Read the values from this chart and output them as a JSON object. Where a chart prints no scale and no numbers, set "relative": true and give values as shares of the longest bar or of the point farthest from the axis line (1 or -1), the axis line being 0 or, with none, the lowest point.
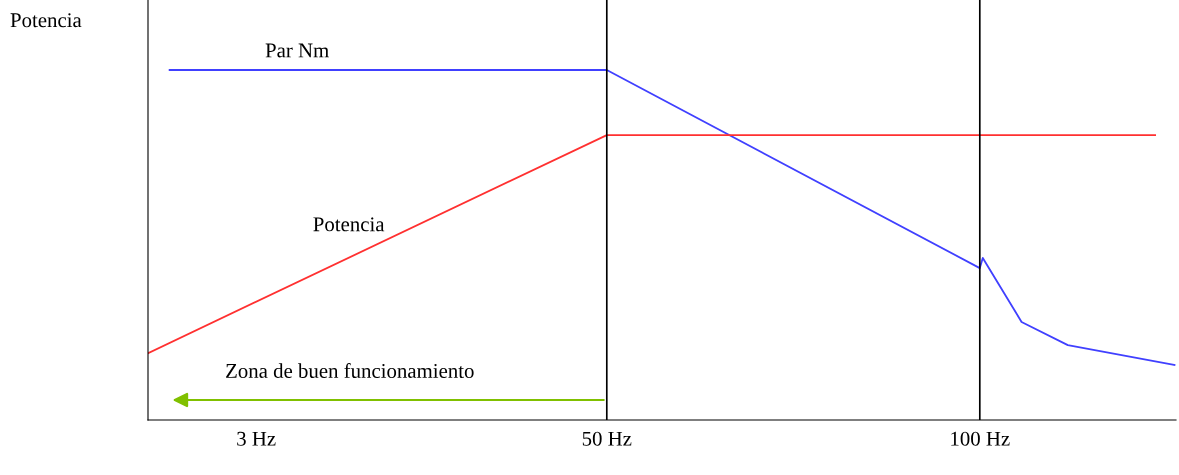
{
  "chart_data": {
    "type": "line",
    "relative": true,
    "ylabel": "Potencia",
    "xlim": [
      -11.5,
      126.3
    ],
    "xticks": [
      {
        "value": 3,
        "label": "3 Hz"
      },
      {
        "value": 50,
        "label": "50 Hz"
      },
      {
        "value": 100,
        "label": "100 Hz"
      }
    ],
    "series": [
      {
        "name": "Par Nm",
        "color": "#4040ff",
        "x": [
          -8.6,
          50,
          100,
          100.4,
          105.6,
          111.8,
          126.1
        ],
        "values": [
          1,
          1,
          0.434,
          0.463,
          0.28,
          0.214,
          0.157
        ]
      },
      {
        "name": "Potencia",
        "color": "#ff3030",
        "x": [
          -11.5,
          50,
          123.5
        ],
        "values": [
          0.191,
          0.814,
          0.814
        ]
      }
    ],
    "ref_lines": [
      {
        "axis": "x",
        "value": 50,
        "color": "#000000"
      },
      {
        "axis": "x",
        "value": 100,
        "color": "#000000"
      }
    ],
    "annotations": [
      "Zona de buen funcionamiento"
    ],
    "grid": false,
    "legend": false,
    "marker": "none",
    "line_style": "solid"
  }
}
